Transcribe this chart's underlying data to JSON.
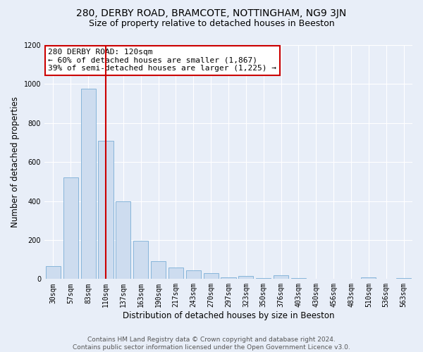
{
  "title1": "280, DERBY ROAD, BRAMCOTE, NOTTINGHAM, NG9 3JN",
  "title2": "Size of property relative to detached houses in Beeston",
  "xlabel": "Distribution of detached houses by size in Beeston",
  "ylabel": "Number of detached properties",
  "categories": [
    "30sqm",
    "57sqm",
    "83sqm",
    "110sqm",
    "137sqm",
    "163sqm",
    "190sqm",
    "217sqm",
    "243sqm",
    "270sqm",
    "297sqm",
    "323sqm",
    "350sqm",
    "376sqm",
    "403sqm",
    "430sqm",
    "456sqm",
    "483sqm",
    "510sqm",
    "536sqm",
    "563sqm"
  ],
  "values": [
    65,
    520,
    975,
    710,
    400,
    195,
    90,
    60,
    45,
    30,
    10,
    15,
    5,
    20,
    5,
    0,
    0,
    0,
    10,
    0,
    5
  ],
  "bar_color": "#cddcef",
  "bar_edge_color": "#7aaed6",
  "vline_x_index": 3,
  "vline_color": "#cc0000",
  "annotation_box_color": "#cc0000",
  "annotation_line1": "280 DERBY ROAD: 120sqm",
  "annotation_line2": "← 60% of detached houses are smaller (1,867)",
  "annotation_line3": "39% of semi-detached houses are larger (1,225) →",
  "annotation_fontsize": 8,
  "ylim": [
    0,
    1200
  ],
  "yticks": [
    0,
    200,
    400,
    600,
    800,
    1000,
    1200
  ],
  "footer1": "Contains HM Land Registry data © Crown copyright and database right 2024.",
  "footer2": "Contains public sector information licensed under the Open Government Licence v3.0.",
  "bg_color": "#e8eef8",
  "plot_bg_color": "#e8eef8",
  "grid_color": "#ffffff",
  "title_fontsize": 10,
  "subtitle_fontsize": 9,
  "xlabel_fontsize": 8.5,
  "ylabel_fontsize": 8.5,
  "tick_fontsize": 7,
  "footer_fontsize": 6.5
}
